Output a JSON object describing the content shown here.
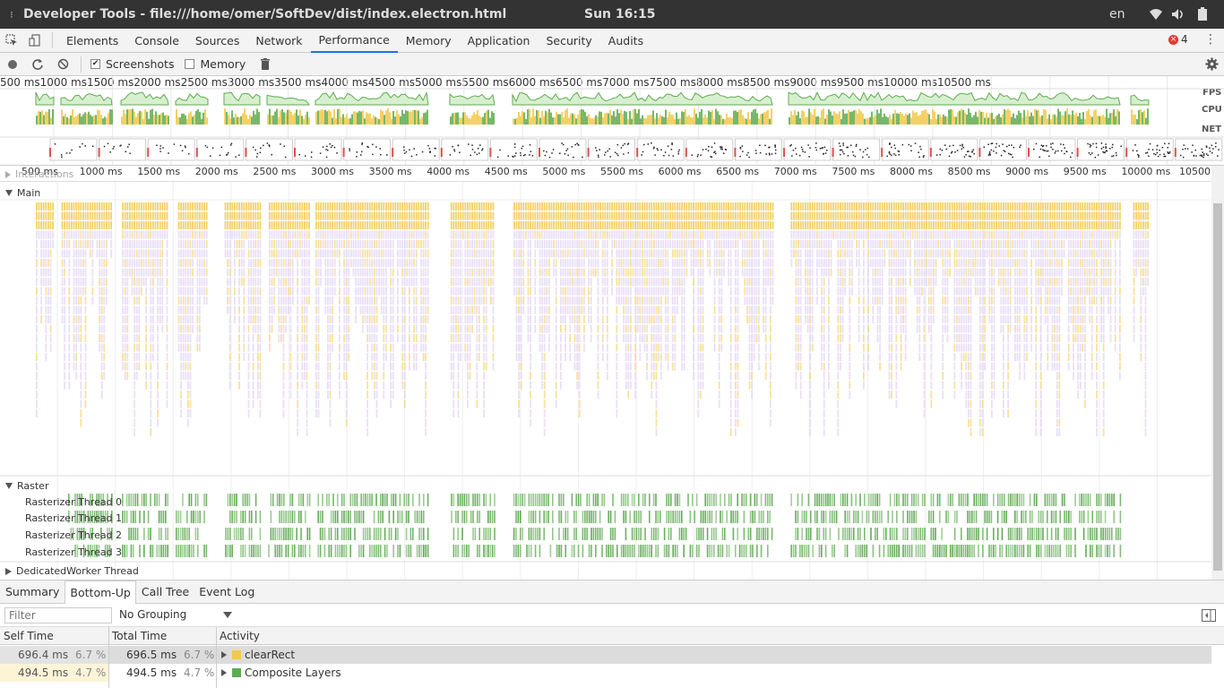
{
  "window": {
    "title": "Developer Tools - file:///home/omer/SoftDev/dist/index.electron.html",
    "clock": "Sun 16:15",
    "lang": "en"
  },
  "devtools": {
    "tabs": [
      "Elements",
      "Console",
      "Sources",
      "Network",
      "Performance",
      "Memory",
      "Application",
      "Security",
      "Audits"
    ],
    "active_tab": "Performance",
    "error_count": "4"
  },
  "perf_toolbar": {
    "screenshots_label": "Screenshots",
    "screenshots_checked": true,
    "memory_label": "Memory",
    "memory_checked": false
  },
  "overview": {
    "ticks": [
      "500 ms",
      "1000 ms",
      "1500 ms",
      "2000 ms",
      "2500 ms",
      "3000 ms",
      "3500 ms",
      "4000 ms",
      "4500 ms",
      "5000 ms",
      "5500 ms",
      "6000 ms",
      "6500 ms",
      "7000 ms",
      "7500 ms",
      "8000 ms",
      "8500 ms",
      "9000 ms",
      "9500 ms",
      "10000 ms",
      "10500 ms"
    ],
    "fps_label": "FPS",
    "cpu_label": "CPU",
    "net_label": "NET"
  },
  "flamechart": {
    "ticks": [
      "500 ms",
      "1000 ms",
      "1500 ms",
      "2000 ms",
      "2500 ms",
      "3000 ms",
      "3500 ms",
      "4000 ms",
      "4500 ms",
      "5000 ms",
      "5500 ms",
      "6000 ms",
      "6500 ms",
      "7000 ms",
      "7500 ms",
      "8000 ms",
      "8500 ms",
      "9000 ms",
      "9500 ms",
      "10000 ms",
      "10500 ms"
    ],
    "interactions_label": "Interactions",
    "main_label": "Main",
    "raster_label": "Raster",
    "rasterizer_threads": [
      "Rasterizer Thread 0",
      "Rasterizer Thread 1",
      "Rasterizer Thread 2",
      "Rasterizer Thread 3"
    ],
    "worker_label": "DedicatedWorker Thread"
  },
  "bottom": {
    "tabs": [
      "Summary",
      "Bottom-Up",
      "Call Tree",
      "Event Log"
    ],
    "active_tab": "Bottom-Up",
    "filter_placeholder": "Filter",
    "grouping": "No Grouping",
    "columns": {
      "self": "Self Time",
      "total": "Total Time",
      "activity": "Activity"
    },
    "rows": [
      {
        "self_time": "696.4 ms",
        "self_pct": "6.7 %",
        "total_time": "696.5 ms",
        "total_pct": "6.7 %",
        "activity": "clearRect",
        "color": "#f2c94c"
      },
      {
        "self_time": "494.5 ms",
        "self_pct": "4.7 %",
        "total_time": "494.5 ms",
        "total_pct": "4.7 %",
        "activity": "Composite Layers",
        "color": "#5fab52"
      }
    ]
  },
  "colors": {
    "accent": "#1a73e8",
    "scripting": "#f2c94c",
    "rendering": "#d8c4f0",
    "painting": "#5fab52",
    "error": "#e53935"
  }
}
